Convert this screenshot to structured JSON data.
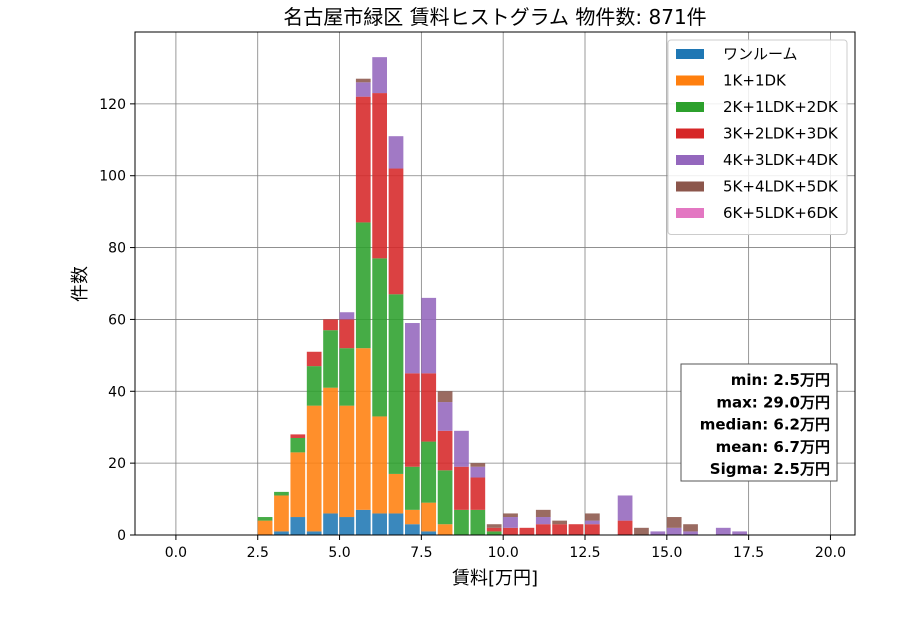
{
  "chart_data": {
    "type": "bar",
    "subtype": "stacked-histogram",
    "title": "名古屋市緑区 賃料ヒストグラム 物件数: 871件",
    "xlabel": "賃料[万円]",
    "ylabel": "件数",
    "xlim": [
      -1.25,
      20.75
    ],
    "ylim": [
      0,
      140
    ],
    "xticks": [
      "0.0",
      "2.5",
      "5.0",
      "7.5",
      "10.0",
      "12.5",
      "15.0",
      "17.5",
      "20.0"
    ],
    "yticks": [
      "0",
      "20",
      "40",
      "60",
      "80",
      "100",
      "120"
    ],
    "grid": true,
    "legend_position": "top-right",
    "bin_width": 0.5,
    "x": [
      2.5,
      3.0,
      3.5,
      4.0,
      4.5,
      5.0,
      5.5,
      6.0,
      6.5,
      7.0,
      7.5,
      8.0,
      8.5,
      9.0,
      9.5,
      10.0,
      10.5,
      11.0,
      11.5,
      12.0,
      12.5,
      13.0,
      13.5,
      14.0,
      14.5,
      15.0,
      15.5,
      16.0,
      16.5,
      17.0
    ],
    "series": [
      {
        "name": "ワンルーム",
        "color": "#1f77b4",
        "values": [
          0,
          1,
          5,
          1,
          6,
          5,
          7,
          6,
          6,
          3,
          1,
          0,
          0,
          0,
          0,
          0,
          0,
          0,
          0,
          0,
          0,
          0,
          0,
          0,
          0,
          0,
          0,
          0,
          0,
          0
        ]
      },
      {
        "name": "1K+1DK",
        "color": "#ff7f0e",
        "values": [
          4,
          10,
          18,
          35,
          35,
          31,
          45,
          27,
          11,
          4,
          8,
          3,
          0,
          0,
          0,
          0,
          0,
          0,
          0,
          0,
          0,
          0,
          0,
          0,
          0,
          0,
          0,
          0,
          0,
          0
        ]
      },
      {
        "name": "2K+1LDK+2DK",
        "color": "#2ca02c",
        "values": [
          1,
          1,
          4,
          11,
          16,
          16,
          35,
          44,
          50,
          12,
          17,
          15,
          7,
          7,
          1,
          0,
          0,
          0,
          0,
          0,
          0,
          0,
          0,
          0,
          0,
          0,
          0,
          0,
          0,
          0
        ]
      },
      {
        "name": "3K+2LDK+3DK",
        "color": "#d62728",
        "values": [
          0,
          0,
          1,
          4,
          3,
          8,
          35,
          46,
          35,
          26,
          19,
          11,
          12,
          9,
          1,
          2,
          2,
          3,
          3,
          3,
          3,
          0,
          4,
          0,
          0,
          0,
          0,
          0,
          0,
          0
        ]
      },
      {
        "name": "4K+3LDK+4DK",
        "color": "#9467bd",
        "values": [
          0,
          0,
          0,
          0,
          0,
          2,
          4,
          10,
          9,
          14,
          21,
          8,
          10,
          3,
          0,
          3,
          0,
          2,
          0,
          0,
          1,
          0,
          7,
          0,
          1,
          2,
          1,
          0,
          2,
          1
        ]
      },
      {
        "name": "5K+4LDK+5DK",
        "color": "#8c564b",
        "values": [
          0,
          0,
          0,
          0,
          0,
          0,
          1,
          0,
          0,
          0,
          0,
          3,
          0,
          1,
          1,
          1,
          0,
          2,
          1,
          0,
          2,
          0,
          0,
          2,
          0,
          3,
          2,
          0,
          0,
          0
        ]
      },
      {
        "name": "6K+5LDK+6DK",
        "color": "#e377c2",
        "values": [
          0,
          0,
          0,
          0,
          0,
          0,
          0,
          0,
          0,
          0,
          0,
          0,
          0,
          0,
          0,
          0,
          0,
          0,
          0,
          0,
          0,
          0,
          0,
          0,
          0,
          0,
          0,
          0,
          0,
          0
        ]
      }
    ],
    "stats": [
      "min: 2.5万円",
      "max: 29.0万円",
      "median: 6.2万円",
      "mean: 6.7万円",
      "Sigma: 2.5万円"
    ]
  }
}
